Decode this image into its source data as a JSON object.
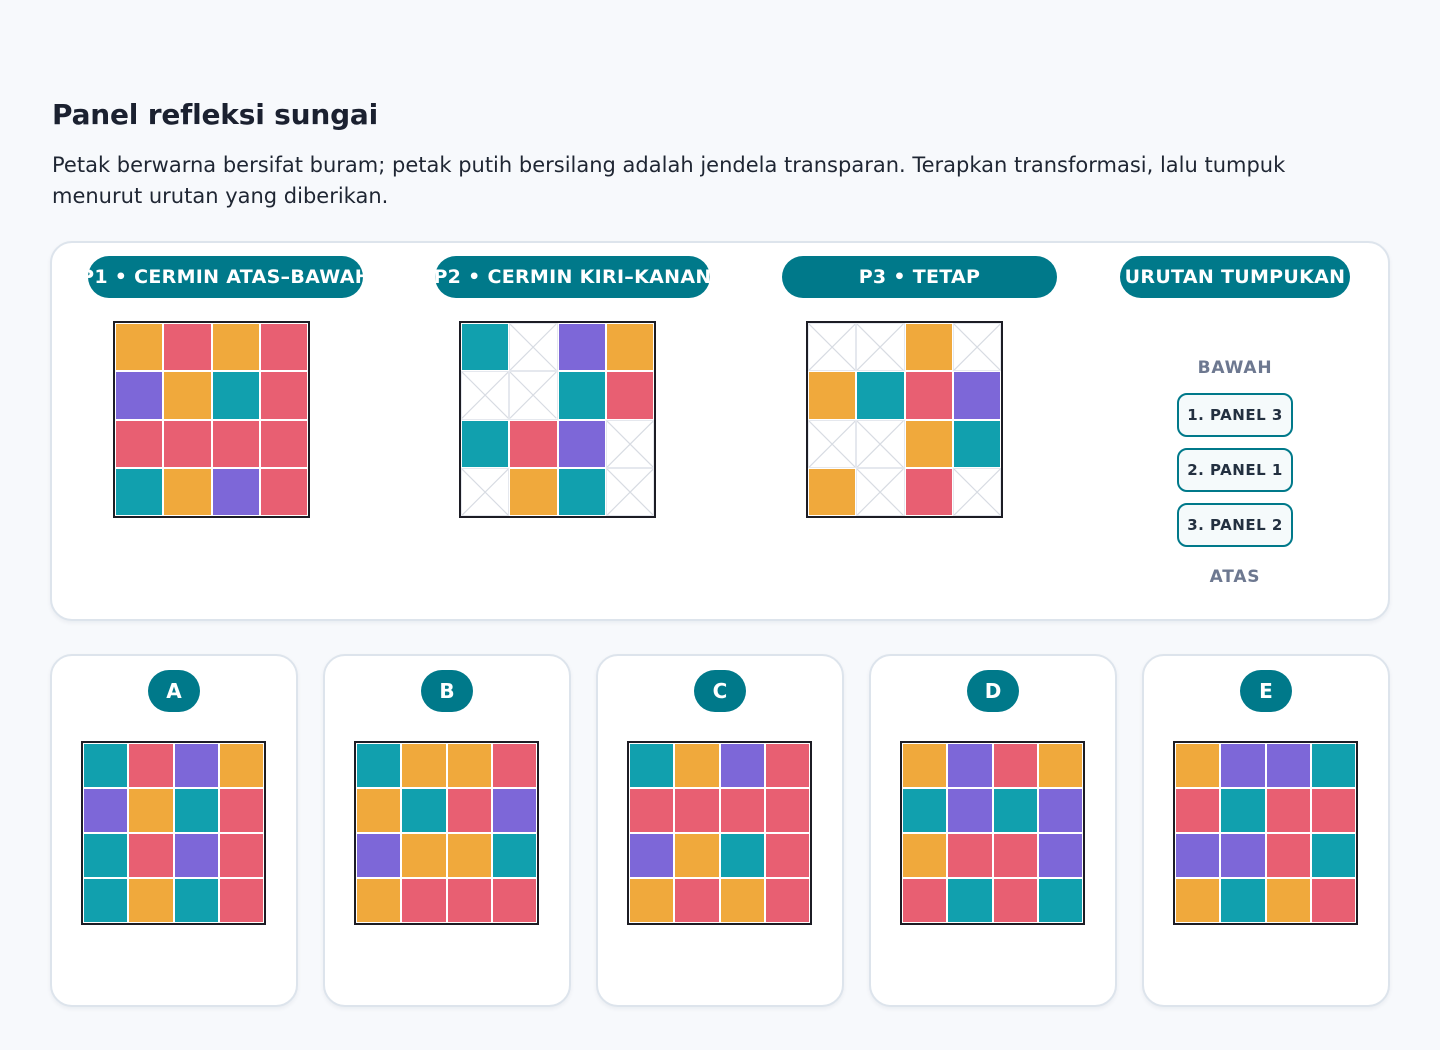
{
  "title": "Panel refleksi sungai",
  "instructions": "Petak berwarna bersifat buram; petak putih bersilang adalah jendela transparan. Terapkan transformasi, lalu tumpuk menurut urutan yang diberikan.",
  "colors": {
    "O": "#f0a93c",
    "R": "#e85f72",
    "T": "#11a0ae",
    "P": "#7d67d8",
    "accent": "#00798a"
  },
  "panels": [
    {
      "label": "P1 • CERMIN ATAS–BAWAH",
      "cells": [
        [
          "O",
          "R",
          "O",
          "R"
        ],
        [
          "P",
          "O",
          "T",
          "R"
        ],
        [
          "R",
          "R",
          "R",
          "R"
        ],
        [
          "T",
          "O",
          "P",
          "R"
        ]
      ]
    },
    {
      "label": "P2 • CERMIN KIRI–KANAN",
      "cells": [
        [
          "T",
          "W",
          "P",
          "O"
        ],
        [
          "W",
          "W",
          "T",
          "R"
        ],
        [
          "T",
          "R",
          "P",
          "W"
        ],
        [
          "W",
          "O",
          "T",
          "W"
        ]
      ]
    },
    {
      "label": "P3 • TETAP",
      "cells": [
        [
          "W",
          "W",
          "O",
          "W"
        ],
        [
          "O",
          "T",
          "R",
          "P"
        ],
        [
          "W",
          "W",
          "O",
          "T"
        ],
        [
          "O",
          "W",
          "R",
          "W"
        ]
      ]
    }
  ],
  "stack": {
    "heading": "URUTAN TUMPUKAN",
    "bottom_label": "BAWAH",
    "top_label": "ATAS",
    "items": [
      "1. PANEL 3",
      "2. PANEL 1",
      "3. PANEL 2"
    ]
  },
  "options": [
    {
      "letter": "A",
      "cells": [
        [
          "T",
          "R",
          "P",
          "O"
        ],
        [
          "P",
          "O",
          "T",
          "R"
        ],
        [
          "T",
          "R",
          "P",
          "R"
        ],
        [
          "T",
          "O",
          "T",
          "R"
        ]
      ]
    },
    {
      "letter": "B",
      "cells": [
        [
          "T",
          "O",
          "O",
          "R"
        ],
        [
          "O",
          "T",
          "R",
          "P"
        ],
        [
          "P",
          "O",
          "O",
          "T"
        ],
        [
          "O",
          "R",
          "R",
          "R"
        ]
      ]
    },
    {
      "letter": "C",
      "cells": [
        [
          "T",
          "O",
          "P",
          "R"
        ],
        [
          "R",
          "R",
          "R",
          "R"
        ],
        [
          "P",
          "O",
          "T",
          "R"
        ],
        [
          "O",
          "R",
          "O",
          "R"
        ]
      ]
    },
    {
      "letter": "D",
      "cells": [
        [
          "O",
          "P",
          "R",
          "O"
        ],
        [
          "T",
          "P",
          "T",
          "P"
        ],
        [
          "O",
          "R",
          "R",
          "P"
        ],
        [
          "R",
          "T",
          "R",
          "T"
        ]
      ]
    },
    {
      "letter": "E",
      "cells": [
        [
          "O",
          "P",
          "P",
          "T"
        ],
        [
          "R",
          "T",
          "R",
          "R"
        ],
        [
          "P",
          "P",
          "R",
          "T"
        ],
        [
          "O",
          "T",
          "O",
          "R"
        ]
      ]
    }
  ]
}
